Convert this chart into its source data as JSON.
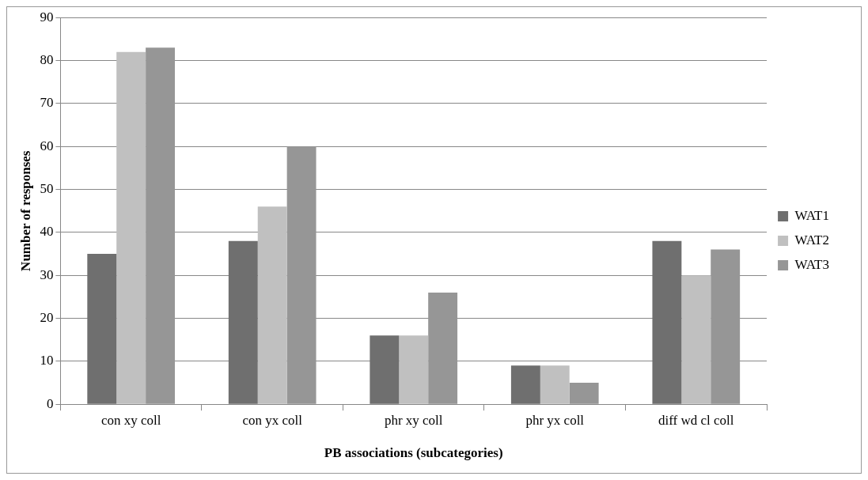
{
  "chart_data": {
    "type": "bar",
    "xlabel": "PB associations (subcategories)",
    "ylabel": "Number of responses",
    "categories": [
      "con xy coll",
      "con yx coll",
      "phr xy coll",
      "phr yx coll",
      "diff wd cl coll"
    ],
    "series": [
      {
        "name": "WAT1",
        "color": "#6f6f6f",
        "values": [
          35,
          38,
          16,
          9,
          38
        ]
      },
      {
        "name": "WAT2",
        "color": "#c0c0c0",
        "values": [
          82,
          46,
          16,
          9,
          30
        ]
      },
      {
        "name": "WAT3",
        "color": "#969696",
        "values": [
          83,
          60,
          26,
          5,
          36
        ]
      }
    ],
    "ylim": [
      0,
      90
    ],
    "yticks": [
      0,
      10,
      20,
      30,
      40,
      50,
      60,
      70,
      80,
      90
    ],
    "grid": "y",
    "legend": "right"
  }
}
